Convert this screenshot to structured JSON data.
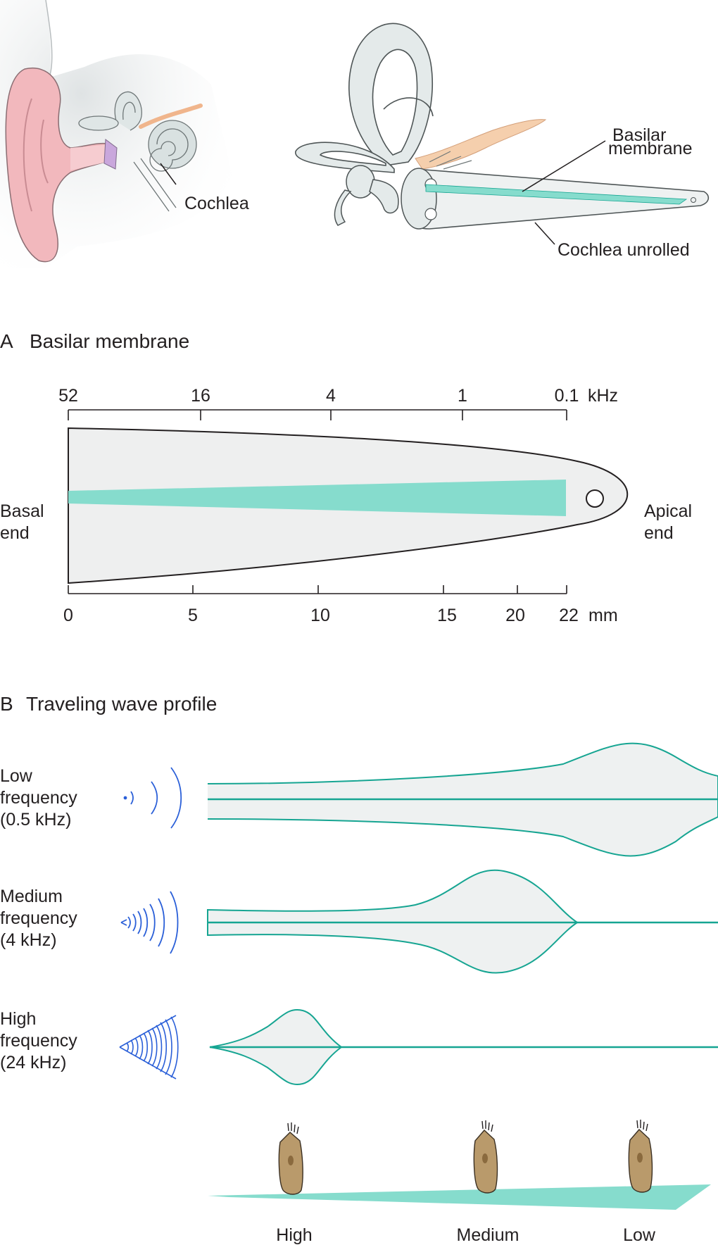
{
  "top": {
    "cochlea_label": "Cochlea",
    "basilar_label_line1": "Basilar",
    "basilar_label_line2": "membrane",
    "unrolled_label": "Cochlea unrolled"
  },
  "panel_a": {
    "letter": "A",
    "title": "Basilar membrane",
    "frequency_ticks": [
      "52",
      "16",
      "4",
      "1",
      "0.1"
    ],
    "frequency_unit": "kHz",
    "distance_ticks": [
      "0",
      "5",
      "10",
      "15",
      "20",
      "22"
    ],
    "distance_unit": "mm",
    "basal_line1": "Basal",
    "basal_line2": "end",
    "apical_line1": "Apical",
    "apical_line2": "end"
  },
  "panel_b": {
    "letter": "B",
    "title": "Traveling wave profile",
    "rows": [
      {
        "line1": "Low",
        "line2": "frequency",
        "line3": "(0.5 kHz)"
      },
      {
        "line1": "Medium",
        "line2": "frequency",
        "line3": "(4 kHz)"
      },
      {
        "line1": "High",
        "line2": "frequency",
        "line3": "(24 kHz)"
      }
    ],
    "hair_cell_labels": [
      "High",
      "Medium",
      "Low"
    ]
  },
  "colors": {
    "teal": "#16a592",
    "teal_fill": "#86dccd",
    "membrane_gray": "#eeefef",
    "sound_blue": "#2a5fd8",
    "skin_pink": "#f2b8bd",
    "hair_cell_brown": "#b99a6b"
  }
}
